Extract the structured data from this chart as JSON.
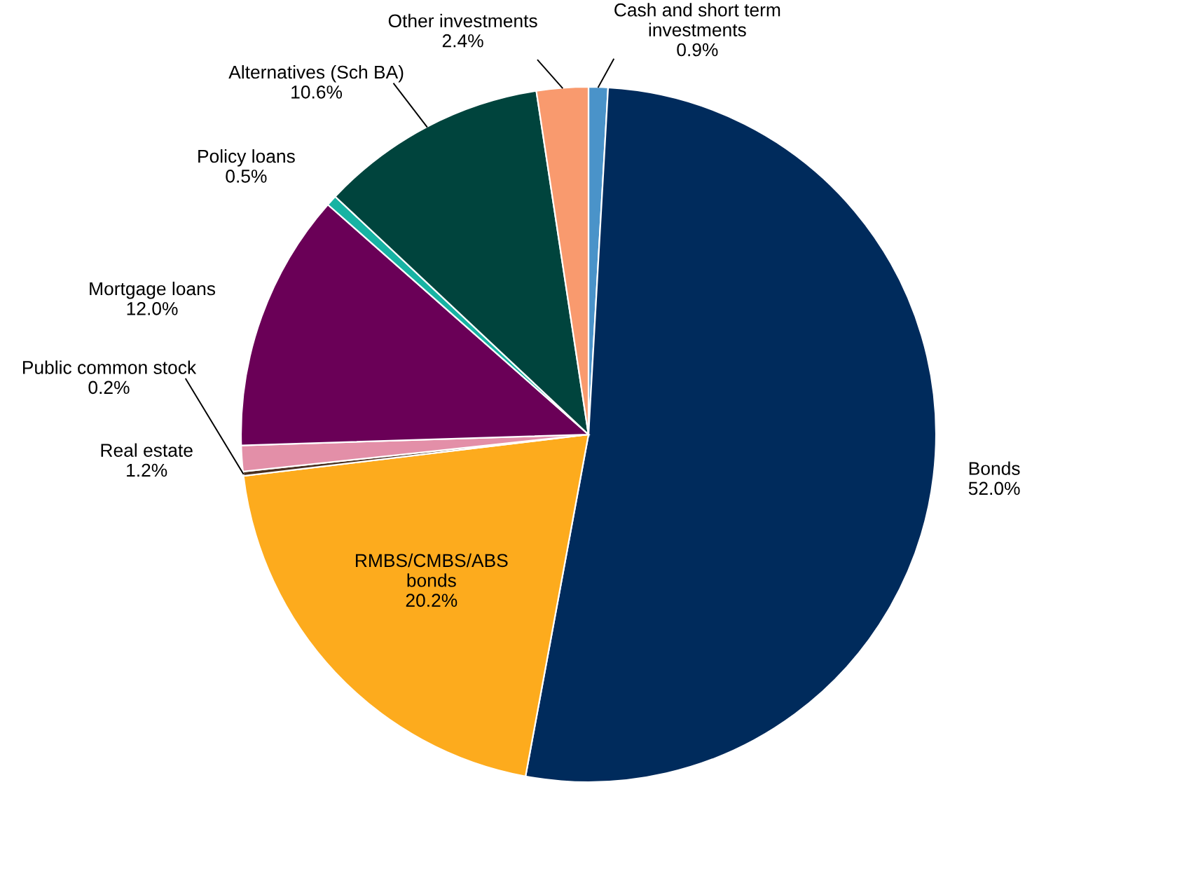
{
  "chart_data": {
    "type": "pie",
    "categories": [
      "Cash and short term\ninvestments",
      "Bonds",
      "RMBS/CMBS/ABS\nbonds",
      "Public common stock",
      "Real estate",
      "Mortgage loans",
      "Policy loans",
      "Alternatives (Sch BA)",
      "Other investments"
    ],
    "values": [
      0.9,
      52.0,
      20.2,
      0.2,
      1.2,
      12.0,
      0.5,
      10.6,
      2.4
    ],
    "colors": [
      "#4a93c9",
      "#002b5c",
      "#fdab1d",
      "#4a3020",
      "#e38fa8",
      "#6a0057",
      "#17b3a3",
      "#00443d",
      "#f99a6e"
    ],
    "value_labels": [
      "0.9%",
      "52.0%",
      "20.2%",
      "0.2%",
      "1.2%",
      "12.0%",
      "0.5%",
      "10.6%",
      "2.4%"
    ],
    "legend": false
  }
}
